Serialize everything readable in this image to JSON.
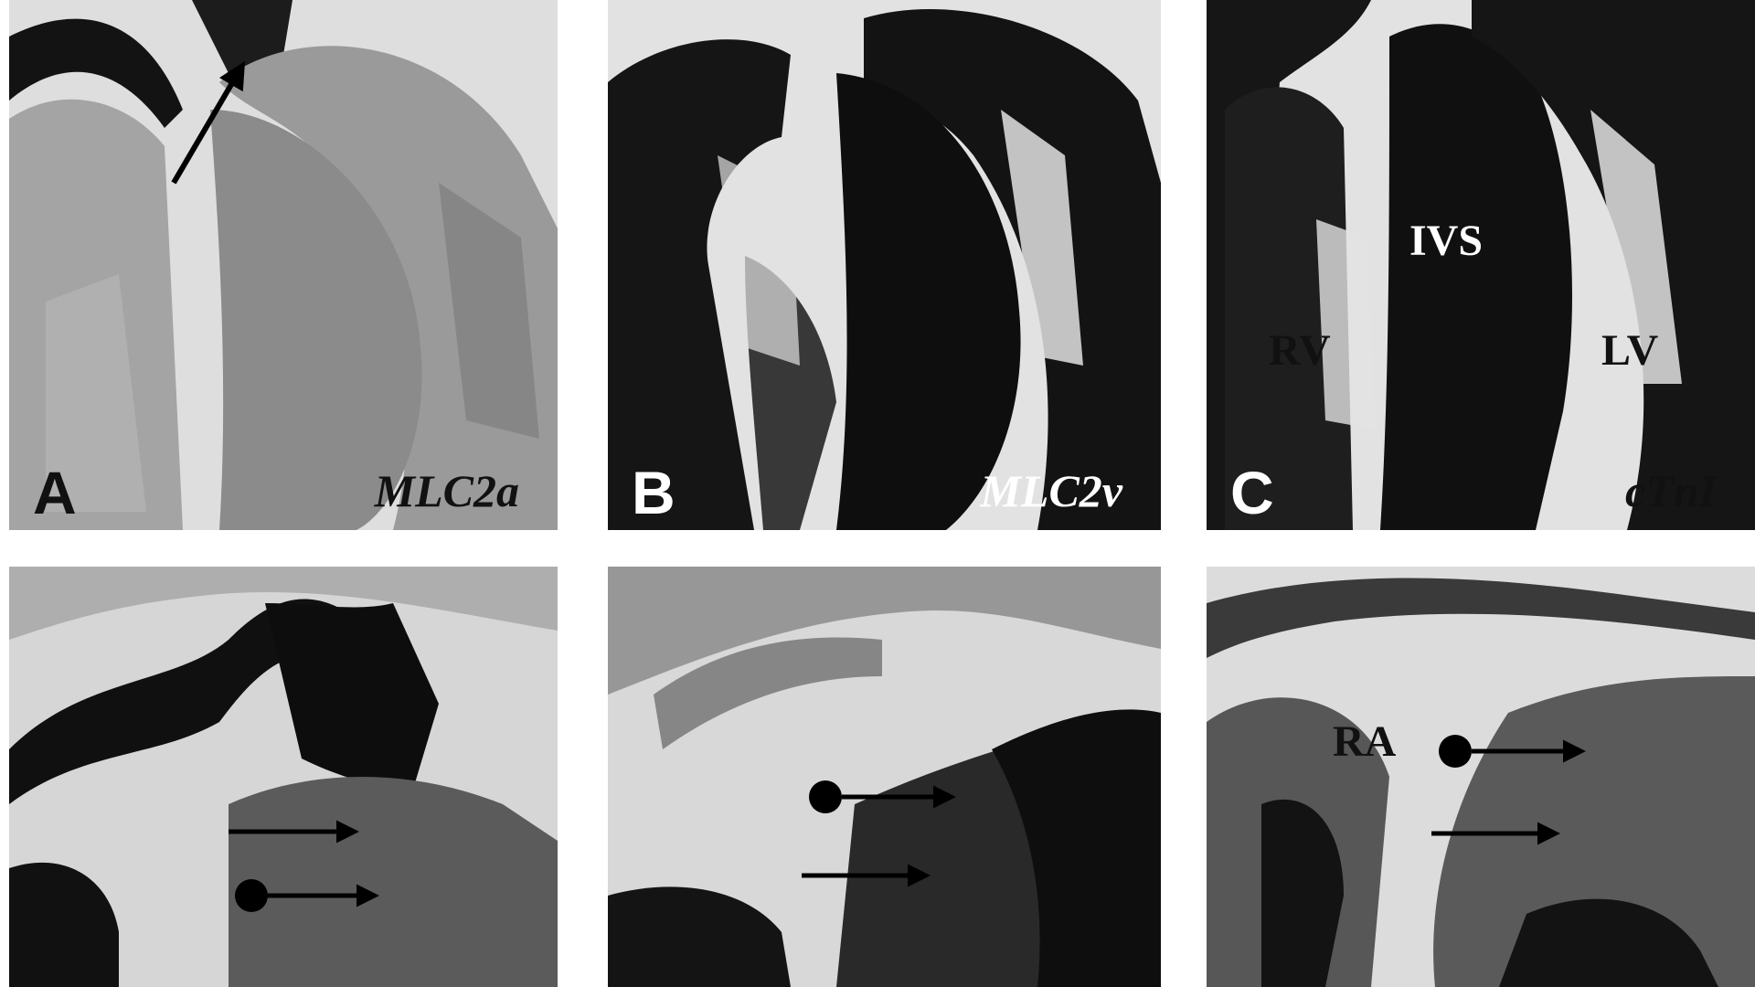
{
  "panels": [
    {
      "letter": "A",
      "gene": "MLC2a",
      "colors": {
        "letter": "#111111",
        "gene": "#111111"
      },
      "region_labels": []
    },
    {
      "letter": "B",
      "gene": "MLC2v",
      "colors": {
        "letter": "#ffffff",
        "gene": "#ffffff"
      },
      "region_labels": []
    },
    {
      "letter": "C",
      "gene": "cTnI",
      "colors": {
        "letter": "#ffffff",
        "gene": "#111111"
      },
      "region_labels": [
        "IVS",
        "RV",
        "LV"
      ]
    }
  ],
  "bottom_panels": [
    {
      "region_labels": []
    },
    {
      "region_labels": []
    },
    {
      "region_labels": [
        "RA"
      ]
    }
  ],
  "colors": {
    "stain_dark": "#151515",
    "stain_mid": "#5a5a5a",
    "stain_light": "#9a9a9a",
    "background_tissue": "#e6e6e6"
  }
}
